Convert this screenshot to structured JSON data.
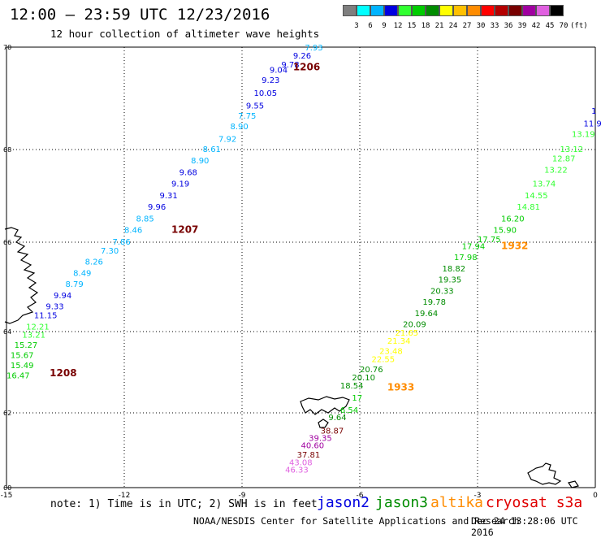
{
  "title": "12:00 – 23:59 UTC 12/23/2016",
  "subtitle": "12 hour collection of altimeter wave heights",
  "colorbar": {
    "unit_label": "(ft)",
    "labels": [
      "3",
      "6",
      "9",
      "12",
      "15",
      "18",
      "21",
      "24",
      "27",
      "30",
      "33",
      "36",
      "39",
      "42",
      "45",
      "70"
    ],
    "colors": [
      "#7f7f7f",
      "#00ffff",
      "#00b4ff",
      "#0000e0",
      "#30ff30",
      "#00cc00",
      "#008c00",
      "#ffff00",
      "#ffc000",
      "#ff8c00",
      "#ff0000",
      "#b40000",
      "#780000",
      "#a000a0",
      "#e060e0",
      "#000000"
    ]
  },
  "axes": {
    "lon_ticks": [
      "-15",
      "-12",
      "-9",
      "-6",
      "-3",
      "0"
    ],
    "lat_ticks": [
      "70",
      "68",
      "66",
      "64",
      "62",
      "60"
    ],
    "lon_range": [
      -15,
      0
    ],
    "lat_range": [
      60,
      70
    ]
  },
  "tracks": [
    {
      "id": "1206",
      "label": "1206",
      "label_color": "#780000",
      "label_pos": {
        "lon": -7.7,
        "lat": 69.55
      },
      "points": [
        {
          "v": "7.93",
          "lon": -7.4,
          "lat": 69.94,
          "c": "#00b4ff"
        },
        {
          "v": "9.26",
          "lon": -7.7,
          "lat": 69.78,
          "c": "#0000e0"
        },
        {
          "v": "9.78",
          "lon": -8.0,
          "lat": 69.6,
          "c": "#0000e0"
        },
        {
          "v": "9.04",
          "lon": -8.3,
          "lat": 69.5,
          "c": "#0000e0"
        },
        {
          "v": "9.23",
          "lon": -8.5,
          "lat": 69.3,
          "c": "#0000e0"
        },
        {
          "v": "10.05",
          "lon": -8.7,
          "lat": 69.05,
          "c": "#0000e0"
        },
        {
          "v": "9.55",
          "lon": -8.9,
          "lat": 68.8,
          "c": "#0000e0"
        },
        {
          "v": "7.75",
          "lon": -9.1,
          "lat": 68.6,
          "c": "#00b4ff"
        },
        {
          "v": "8.90",
          "lon": -9.3,
          "lat": 68.4,
          "c": "#00b4ff"
        },
        {
          "v": "7.92",
          "lon": -9.6,
          "lat": 68.15,
          "c": "#00b4ff"
        },
        {
          "v": "8.61",
          "lon": -10.0,
          "lat": 67.95,
          "c": "#00b4ff"
        },
        {
          "v": "8.90",
          "lon": -10.3,
          "lat": 67.7,
          "c": "#00b4ff"
        },
        {
          "v": "9.68",
          "lon": -10.6,
          "lat": 67.45,
          "c": "#0000e0"
        },
        {
          "v": "9.19",
          "lon": -10.8,
          "lat": 67.2,
          "c": "#0000e0"
        },
        {
          "v": "9.31",
          "lon": -11.1,
          "lat": 66.95,
          "c": "#0000e0"
        },
        {
          "v": "9.96",
          "lon": -11.4,
          "lat": 66.7,
          "c": "#0000e0"
        },
        {
          "v": "8.85",
          "lon": -11.7,
          "lat": 66.45,
          "c": "#00b4ff"
        },
        {
          "v": "8.46",
          "lon": -12.0,
          "lat": 66.2,
          "c": "#00b4ff"
        }
      ]
    },
    {
      "id": "1207",
      "label": "1207",
      "label_color": "#780000",
      "label_pos": {
        "lon": -10.8,
        "lat": 66.2
      },
      "points": [
        {
          "v": "7.86",
          "lon": -12.3,
          "lat": 65.95,
          "c": "#00b4ff"
        },
        {
          "v": "7.30",
          "lon": -12.6,
          "lat": 65.75,
          "c": "#00b4ff"
        },
        {
          "v": "8.26",
          "lon": -13.0,
          "lat": 65.5,
          "c": "#00b4ff"
        },
        {
          "v": "8.49",
          "lon": -13.3,
          "lat": 65.25,
          "c": "#00b4ff"
        },
        {
          "v": "8.79",
          "lon": -13.5,
          "lat": 65.0,
          "c": "#00b4ff"
        },
        {
          "v": "9.94",
          "lon": -13.8,
          "lat": 64.75,
          "c": "#0000e0"
        },
        {
          "v": "9.33",
          "lon": -14.0,
          "lat": 64.5,
          "c": "#0000e0"
        },
        {
          "v": "11.15",
          "lon": -14.3,
          "lat": 64.3,
          "c": "#0000e0"
        },
        {
          "v": "12.21",
          "lon": -14.5,
          "lat": 64.05,
          "c": "#30ff30"
        },
        {
          "v": "13.21",
          "lon": -14.6,
          "lat": 63.85,
          "c": "#30ff30"
        },
        {
          "v": "15.27",
          "lon": -14.8,
          "lat": 63.6,
          "c": "#00cc00"
        },
        {
          "v": "15.67",
          "lon": -14.9,
          "lat": 63.35,
          "c": "#00cc00"
        },
        {
          "v": "15.49",
          "lon": -14.9,
          "lat": 63.1,
          "c": "#00cc00"
        },
        {
          "v": "16.47",
          "lon": -15.0,
          "lat": 62.85,
          "c": "#00cc00"
        }
      ]
    },
    {
      "id": "1208",
      "label": "1208",
      "label_color": "#780000",
      "label_pos": {
        "lon": -13.9,
        "lat": 62.9
      },
      "points": []
    },
    {
      "id": "1932",
      "label": "1932",
      "label_color": "#ff8c00",
      "label_pos": {
        "lon": -2.4,
        "lat": 65.85
      },
      "points": [
        {
          "v": "1",
          "lon": -0.1,
          "lat": 68.7,
          "c": "#0000e0"
        },
        {
          "v": "11.9",
          "lon": -0.3,
          "lat": 68.45,
          "c": "#0000e0"
        },
        {
          "v": "13.19",
          "lon": -0.6,
          "lat": 68.25,
          "c": "#30ff30"
        },
        {
          "v": "13.12",
          "lon": -0.9,
          "lat": 67.95,
          "c": "#30ff30"
        },
        {
          "v": "12.87",
          "lon": -1.1,
          "lat": 67.75,
          "c": "#30ff30"
        },
        {
          "v": "13.22",
          "lon": -1.3,
          "lat": 67.5,
          "c": "#30ff30"
        },
        {
          "v": "13.74",
          "lon": -1.6,
          "lat": 67.2,
          "c": "#30ff30"
        },
        {
          "v": "14.55",
          "lon": -1.8,
          "lat": 66.95,
          "c": "#30ff30"
        },
        {
          "v": "14.81",
          "lon": -2.0,
          "lat": 66.7,
          "c": "#30ff30"
        },
        {
          "v": "16.20",
          "lon": -2.4,
          "lat": 66.45,
          "c": "#00cc00"
        },
        {
          "v": "15.90",
          "lon": -2.6,
          "lat": 66.2,
          "c": "#00cc00"
        },
        {
          "v": "17.75",
          "lon": -3.0,
          "lat": 66.0,
          "c": "#00cc00"
        },
        {
          "v": "17.94",
          "lon": -3.4,
          "lat": 65.85,
          "c": "#00cc00"
        },
        {
          "v": "17.98",
          "lon": -3.6,
          "lat": 65.6,
          "c": "#00cc00"
        },
        {
          "v": "18.82",
          "lon": -3.9,
          "lat": 65.35,
          "c": "#008c00"
        },
        {
          "v": "19.35",
          "lon": -4.0,
          "lat": 65.1,
          "c": "#008c00"
        },
        {
          "v": "20.33",
          "lon": -4.2,
          "lat": 64.85,
          "c": "#008c00"
        },
        {
          "v": "19.78",
          "lon": -4.4,
          "lat": 64.6,
          "c": "#008c00"
        },
        {
          "v": "19.64",
          "lon": -4.6,
          "lat": 64.35,
          "c": "#008c00"
        },
        {
          "v": "20.09",
          "lon": -4.9,
          "lat": 64.1,
          "c": "#008c00"
        },
        {
          "v": "21.65",
          "lon": -5.1,
          "lat": 63.9,
          "c": "#ffff00"
        },
        {
          "v": "21.34",
          "lon": -5.3,
          "lat": 63.7,
          "c": "#ffff00"
        },
        {
          "v": "23.48",
          "lon": -5.5,
          "lat": 63.45,
          "c": "#ffff00"
        },
        {
          "v": "22.55",
          "lon": -5.7,
          "lat": 63.25,
          "c": "#ffff00"
        },
        {
          "v": "20.76",
          "lon": -6.0,
          "lat": 63.0,
          "c": "#008c00"
        },
        {
          "v": "20.10",
          "lon": -6.2,
          "lat": 62.8,
          "c": "#008c00"
        },
        {
          "v": "18.54",
          "lon": -6.5,
          "lat": 62.6,
          "c": "#008c00"
        }
      ]
    },
    {
      "id": "1933",
      "label": "1933",
      "label_color": "#ff8c00",
      "label_pos": {
        "lon": -5.3,
        "lat": 62.55
      },
      "points": [
        {
          "v": "17",
          "lon": -6.2,
          "lat": 62.3,
          "c": "#00cc00"
        },
        {
          "v": "6.54",
          "lon": -6.5,
          "lat": 62.0,
          "c": "#00cc00"
        },
        {
          "v": "9.64",
          "lon": -6.8,
          "lat": 61.8,
          "c": "#008c00"
        },
        {
          "v": "38.87",
          "lon": -7.0,
          "lat": 61.45,
          "c": "#780000"
        },
        {
          "v": "39.35",
          "lon": -7.3,
          "lat": 61.25,
          "c": "#a000a0"
        },
        {
          "v": "40.60",
          "lon": -7.5,
          "lat": 61.05,
          "c": "#a000a0"
        },
        {
          "v": "37.81",
          "lon": -7.6,
          "lat": 60.8,
          "c": "#780000"
        },
        {
          "v": "43.08",
          "lon": -7.8,
          "lat": 60.6,
          "c": "#e060e0"
        },
        {
          "v": "46.33",
          "lon": -7.9,
          "lat": 60.4,
          "c": "#e060e0"
        }
      ]
    }
  ],
  "note": "note: 1) Time is in UTC; 2) SWH is in feet",
  "satellites": [
    {
      "name": "jason2",
      "color": "#0000e0"
    },
    {
      "name": "jason3",
      "color": "#008c00"
    },
    {
      "name": "altika",
      "color": "#ff8c00"
    },
    {
      "name": "cryosat s3a",
      "color": "#e00000"
    }
  ],
  "credit": "NOAA/NESDIS Center for Satellite Applications and Research",
  "credit_date": "Dec 24 13:28:06 UTC 2016"
}
